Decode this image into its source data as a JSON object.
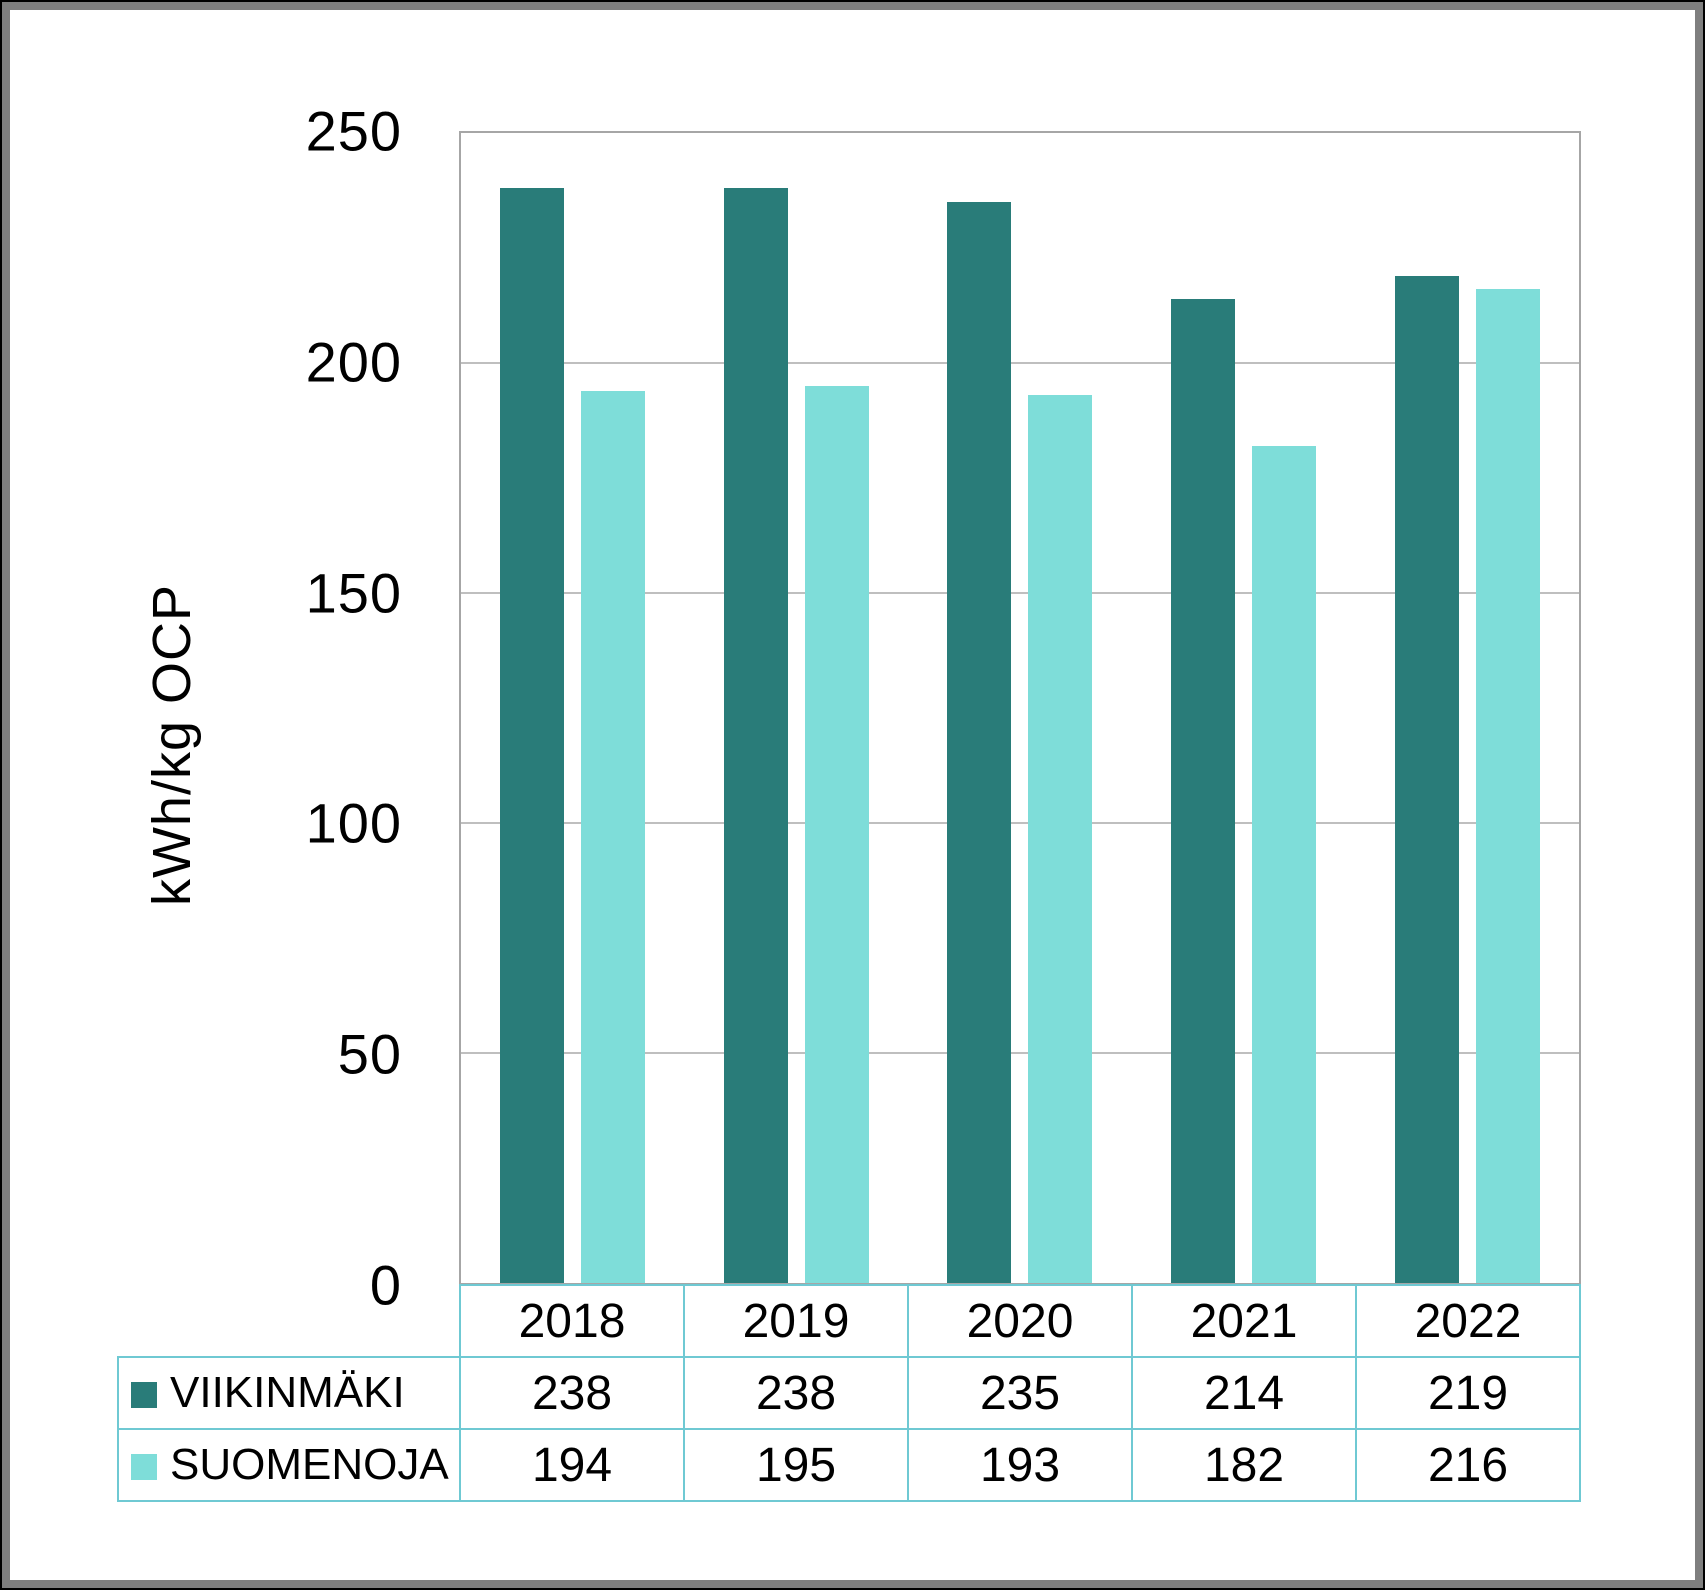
{
  "chart_data": {
    "type": "bar",
    "title": "",
    "xlabel": "",
    "ylabel": "kWh/kg OCP",
    "categories": [
      "2018",
      "2019",
      "2020",
      "2021",
      "2022"
    ],
    "series": [
      {
        "name": "VIIKINMÄKI",
        "color": "#297c79",
        "values": [
          238,
          238,
          235,
          214,
          219
        ]
      },
      {
        "name": "SUOMENOJA",
        "color": "#7eddd9",
        "values": [
          194,
          195,
          193,
          182,
          216
        ]
      }
    ],
    "ylim": [
      0,
      250
    ],
    "yticks": [
      250,
      200,
      150,
      100,
      50,
      0
    ],
    "grid": true,
    "legend_position": "table-left",
    "colors": {
      "plot_border": "#a6a6a6",
      "gridline": "#bfbfbf",
      "table_border": "#6fc9d3",
      "text": "#000000",
      "frame_outer": "#000000",
      "frame_inner": "#7f7f7f",
      "background": "#ffffff"
    }
  }
}
